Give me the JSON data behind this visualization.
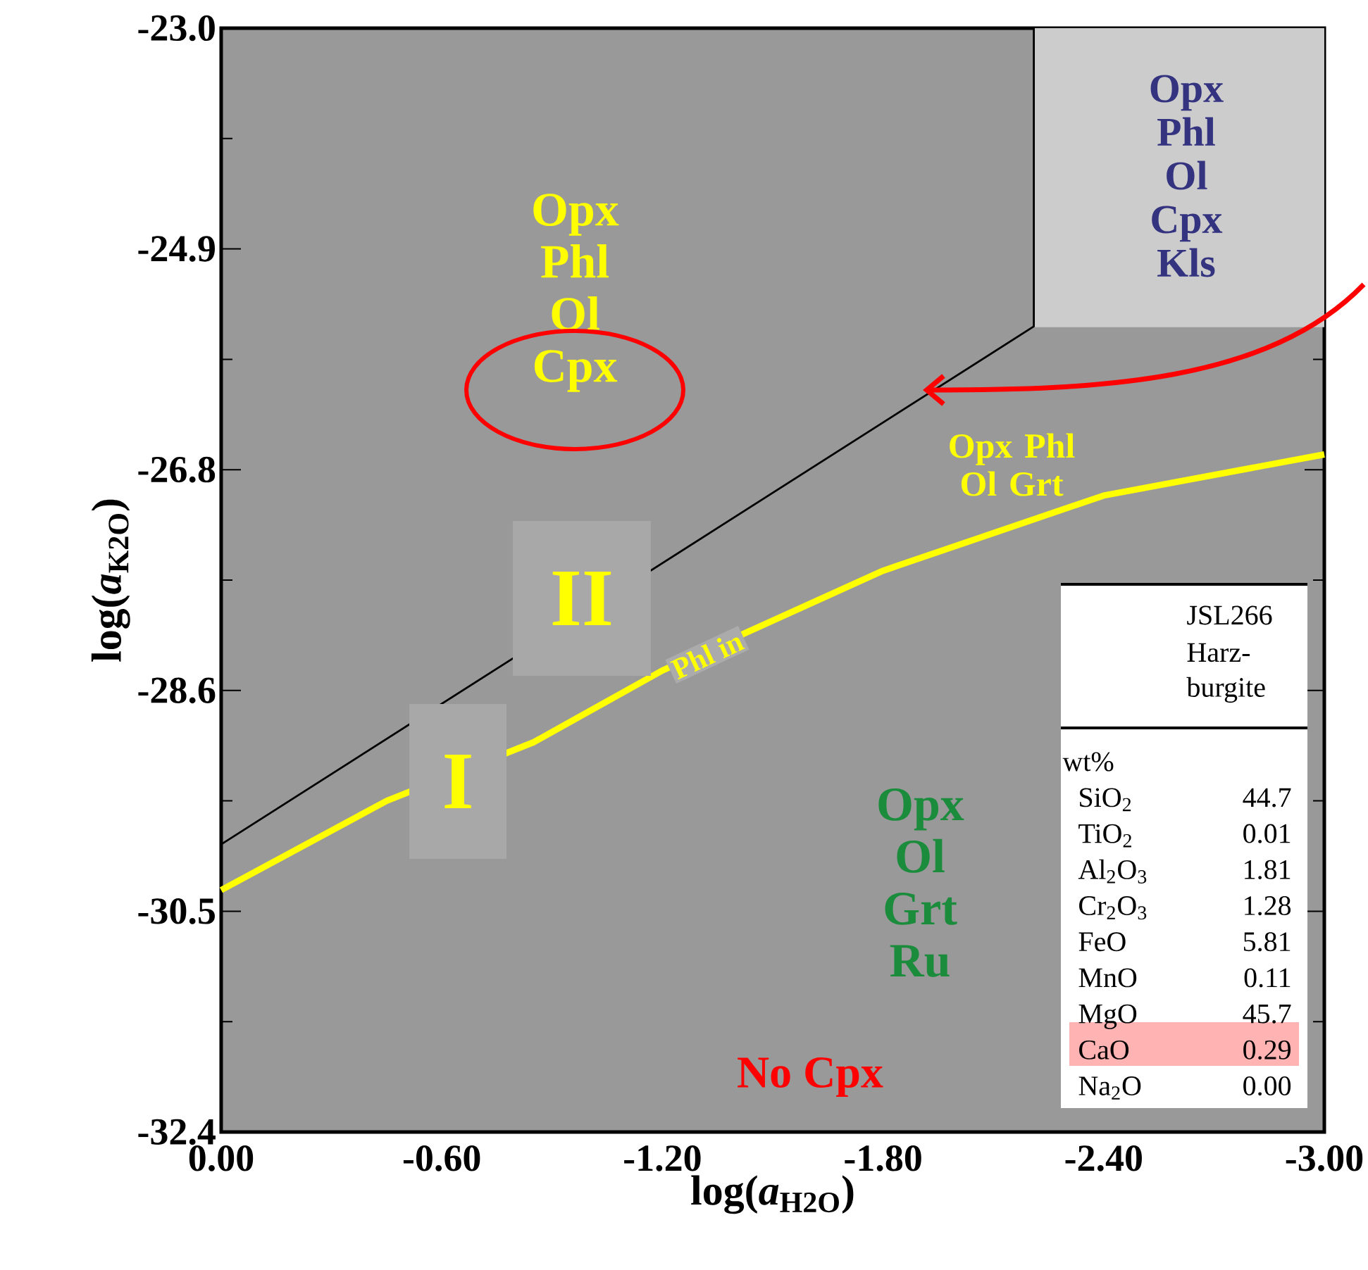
{
  "chart_data": {
    "type": "line",
    "xlabel": "log(*a*$_{H2O}$)",
    "ylabel": "log(*a*$_{K2O}$)",
    "xlim": [
      0,
      -3
    ],
    "ylim": [
      -32.4,
      -23.0
    ],
    "xticks": [
      {
        "value": 0,
        "label": "0.00"
      },
      {
        "value": -0.6,
        "label": "-0.60"
      },
      {
        "value": -1.2,
        "label": "-1.20"
      },
      {
        "value": -1.8,
        "label": "-1.80"
      },
      {
        "value": -2.4,
        "label": "-2.40"
      },
      {
        "value": -3,
        "label": "-3.00"
      }
    ],
    "yticks": [
      {
        "value": -23.0,
        "label": "-23.0"
      },
      {
        "value": -24.88,
        "label": "-24.9"
      },
      {
        "value": -26.76,
        "label": "-26.8"
      },
      {
        "value": -28.64,
        "label": "-28.6"
      },
      {
        "value": -30.52,
        "label": "-30.5"
      },
      {
        "value": -32.4,
        "label": "-32.4"
      }
    ],
    "series": [
      {
        "color": "#cccccc",
        "x": [
          -2.21,
          -3
        ],
        "values": [
          -25.54,
          -25.54
        ],
        "lower": [
          -25.54,
          -25.54
        ],
        "upper": [
          -23.0,
          -23.0
        ]
      },
      {
        "color": "#000000",
        "x": [
          0,
          -2.21,
          -2.21
        ],
        "values": [
          -29.95,
          -25.54,
          -23.0
        ]
      },
      {
        "color": "#ffff00",
        "x": [
          0,
          -0.45,
          -0.85,
          -1.2,
          -1.8,
          -2.4,
          -3
        ],
        "values": [
          -30.34,
          -29.58,
          -29.08,
          -28.47,
          -27.62,
          -26.98,
          -26.63
        ]
      }
    ],
    "annotations": [
      "Opx Phl Ol Cpx",
      "Opx Phl Ol Cpx Kls",
      "Opx Phl Ol Grt",
      "II",
      "I",
      "Phl in",
      "Opx Ol Grt Ru",
      "No Cpx",
      "JSL266",
      "Harz-",
      "burgite",
      "wt%",
      "SiO$_{2}$",
      "44.7",
      "TiO$_{2}$",
      "0.01",
      "Al$_{2}$O$_{3}$",
      "1.81",
      "Cr$_{2}$O$_{3}$",
      "1.28",
      "FeO",
      "5.81",
      "MnO",
      "0.11",
      "MgO",
      "45.7",
      "CaO",
      "0.29",
      "Na$_{2}$O",
      "0.00"
    ]
  }
}
